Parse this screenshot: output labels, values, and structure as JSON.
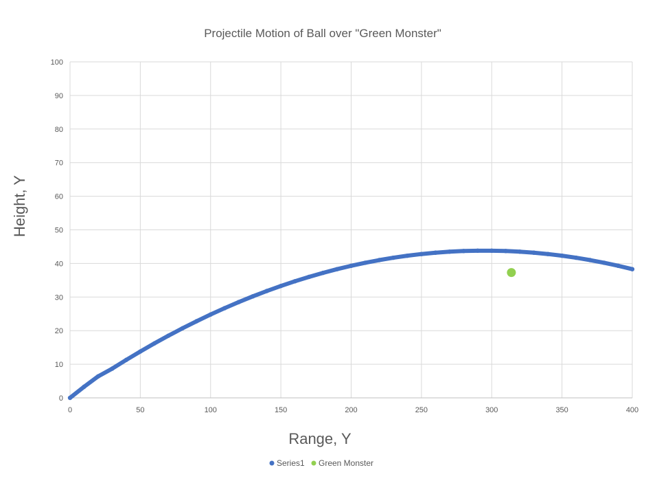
{
  "chart_data": {
    "type": "scatter",
    "title": "Projectile Motion of Ball over \"Green Monster\"",
    "xlabel": "Range, Y",
    "ylabel": "Height, Y",
    "xlim": [
      0,
      400
    ],
    "ylim": [
      0,
      100
    ],
    "x_ticks": [
      0,
      50,
      100,
      150,
      200,
      250,
      300,
      350,
      400
    ],
    "y_ticks": [
      0,
      10,
      20,
      30,
      40,
      50,
      60,
      70,
      80,
      90,
      100
    ],
    "grid": true,
    "legend_position": "bottom",
    "series": [
      {
        "name": "Series1",
        "color": "#4472c4",
        "points": [
          [
            0,
            0
          ],
          [
            10,
            3.3
          ],
          [
            20,
            6.4
          ],
          [
            30,
            8.7
          ],
          [
            40,
            11.3
          ],
          [
            50,
            13.8
          ],
          [
            60,
            16.2
          ],
          [
            70,
            18.5
          ],
          [
            80,
            20.7
          ],
          [
            90,
            22.8
          ],
          [
            100,
            24.8
          ],
          [
            110,
            26.7
          ],
          [
            120,
            28.5
          ],
          [
            130,
            30.2
          ],
          [
            140,
            31.8
          ],
          [
            150,
            33.3
          ],
          [
            160,
            34.7
          ],
          [
            170,
            36.0
          ],
          [
            180,
            37.2
          ],
          [
            190,
            38.3
          ],
          [
            200,
            39.3
          ],
          [
            210,
            40.2
          ],
          [
            220,
            41.0
          ],
          [
            230,
            41.7
          ],
          [
            240,
            42.3
          ],
          [
            250,
            42.8
          ],
          [
            260,
            43.2
          ],
          [
            270,
            43.5
          ],
          [
            280,
            43.7
          ],
          [
            290,
            43.8
          ],
          [
            300,
            43.8
          ],
          [
            310,
            43.7
          ],
          [
            320,
            43.5
          ],
          [
            330,
            43.2
          ],
          [
            340,
            42.8
          ],
          [
            350,
            42.3
          ],
          [
            360,
            41.7
          ],
          [
            370,
            41.0
          ],
          [
            380,
            40.2
          ],
          [
            390,
            39.3
          ],
          [
            400,
            38.3
          ]
        ]
      },
      {
        "name": "Green Monster",
        "color": "#92d050",
        "points": [
          [
            314,
            37.3
          ]
        ]
      }
    ]
  }
}
